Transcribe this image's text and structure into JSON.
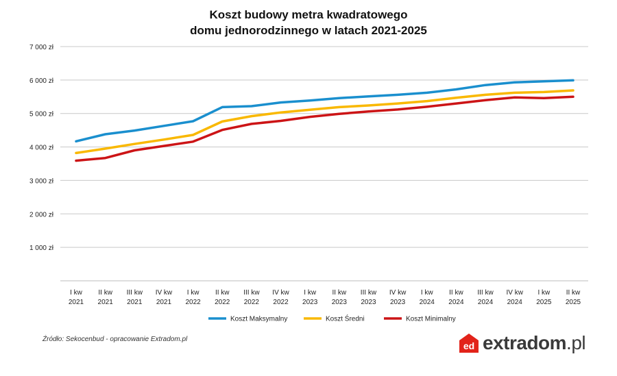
{
  "title_line1": "Koszt budowy metra kwadratowego",
  "title_line2": "domu jednorodzinnego w latach 2021-2025",
  "source": "Źródło: Sekocenbud - opracowanie Extradom.pl",
  "logo": {
    "name": "extradom",
    "tld": ".pl",
    "badge": "ed",
    "color": "#e2231a"
  },
  "chart_data": {
    "type": "line",
    "title": "Koszt budowy metra kwadratowego domu jednorodzinnego w latach 2021-2025",
    "xlabel": "",
    "ylabel": "",
    "ylim": [
      0,
      7000
    ],
    "grid": true,
    "legend_position": "bottom",
    "yticks": [
      {
        "value": 1000,
        "label": "1 000 zł"
      },
      {
        "value": 2000,
        "label": "2 000 zł"
      },
      {
        "value": 3000,
        "label": "3 000 zł"
      },
      {
        "value": 4000,
        "label": "4 000 zł"
      },
      {
        "value": 5000,
        "label": "5 000 zł"
      },
      {
        "value": 6000,
        "label": "6 000 zł"
      },
      {
        "value": 7000,
        "label": "7 000 zł"
      }
    ],
    "categories": [
      [
        "I kw",
        "2021"
      ],
      [
        "II kw",
        "2021"
      ],
      [
        "III kw",
        "2021"
      ],
      [
        "IV kw",
        "2021"
      ],
      [
        "I kw",
        "2022"
      ],
      [
        "II kw",
        "2022"
      ],
      [
        "III kw",
        "2022"
      ],
      [
        "IV kw",
        "2022"
      ],
      [
        "I kw",
        "2023"
      ],
      [
        "II kw",
        "2023"
      ],
      [
        "III kw",
        "2023"
      ],
      [
        "IV kw",
        "2023"
      ],
      [
        "I kw",
        "2024"
      ],
      [
        "II kw",
        "2024"
      ],
      [
        "III kw",
        "2024"
      ],
      [
        "IV kw",
        "2024"
      ],
      [
        "I kw",
        "2025"
      ],
      [
        "II kw",
        "2025"
      ]
    ],
    "series": [
      {
        "name": "Koszt Maksymalny",
        "color": "#1a8fce",
        "values": [
          4170,
          4380,
          4490,
          4630,
          4770,
          5190,
          5220,
          5330,
          5390,
          5460,
          5510,
          5560,
          5620,
          5720,
          5850,
          5930,
          5960,
          5990
        ]
      },
      {
        "name": "Koszt Średni",
        "color": "#f9b800",
        "values": [
          3820,
          3950,
          4090,
          4220,
          4360,
          4760,
          4920,
          5030,
          5110,
          5190,
          5240,
          5300,
          5370,
          5470,
          5560,
          5620,
          5640,
          5690
        ]
      },
      {
        "name": "Koszt Minimalny",
        "color": "#cc1416",
        "values": [
          3590,
          3670,
          3900,
          4030,
          4160,
          4510,
          4690,
          4780,
          4900,
          4990,
          5060,
          5120,
          5200,
          5300,
          5400,
          5480,
          5460,
          5500
        ]
      }
    ]
  }
}
